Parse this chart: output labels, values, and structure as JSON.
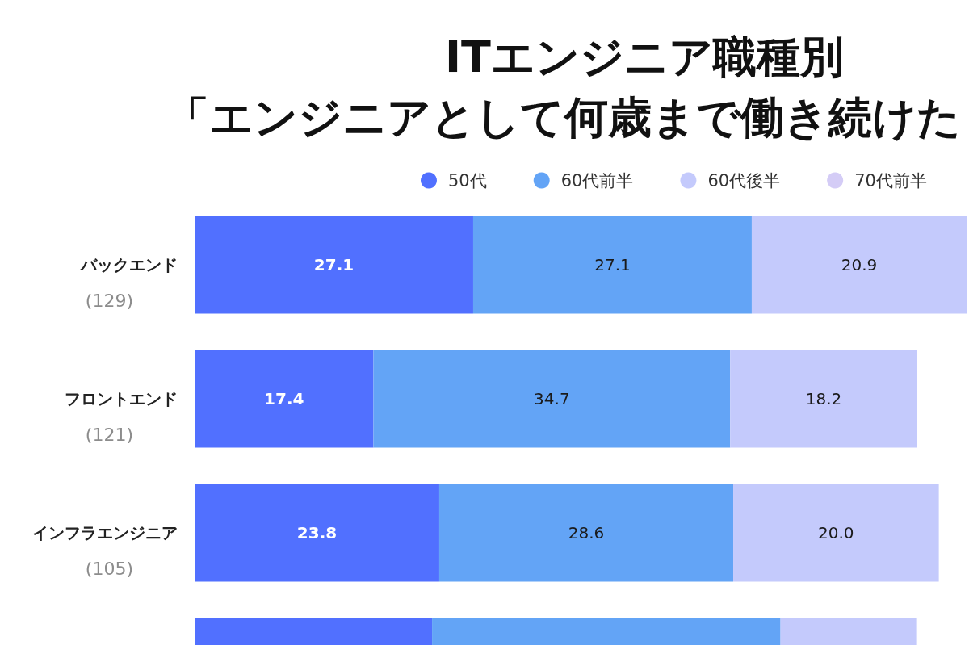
{
  "chart_data": {
    "type": "bar",
    "orientation": "horizontal",
    "stacked": true,
    "title": "ITエンジニア職種別",
    "subtitle": "「エンジニアとして何歳まで働き続けた",
    "categories": [
      "バックエンド\n(129)",
      "フロントエンド\n(121)",
      "インフラエンジニア\n(105)",
      null
    ],
    "series": [
      {
        "name": "50代",
        "color": "#5170ff",
        "values": [
          27.1,
          17.4,
          23.8,
          23.1
        ],
        "value_labels": [
          "27.1",
          "17.4",
          "23.8",
          null
        ]
      },
      {
        "name": "60代前半",
        "color": "#63a4f6",
        "values": [
          27.1,
          34.7,
          28.6,
          33.9
        ],
        "value_labels": [
          "27.1",
          "34.7",
          "28.6",
          null
        ]
      },
      {
        "name": "60代後半",
        "color": "#c4cafc",
        "values": [
          20.9,
          18.2,
          20.0,
          13.2
        ],
        "value_labels": [
          "20.9",
          "18.2",
          "20.0",
          null
        ]
      },
      {
        "name": "70代前半",
        "color": "#d4ccf6",
        "values": [
          null,
          null,
          null,
          null
        ]
      }
    ],
    "legend": "top",
    "tick_labels": "y"
  }
}
